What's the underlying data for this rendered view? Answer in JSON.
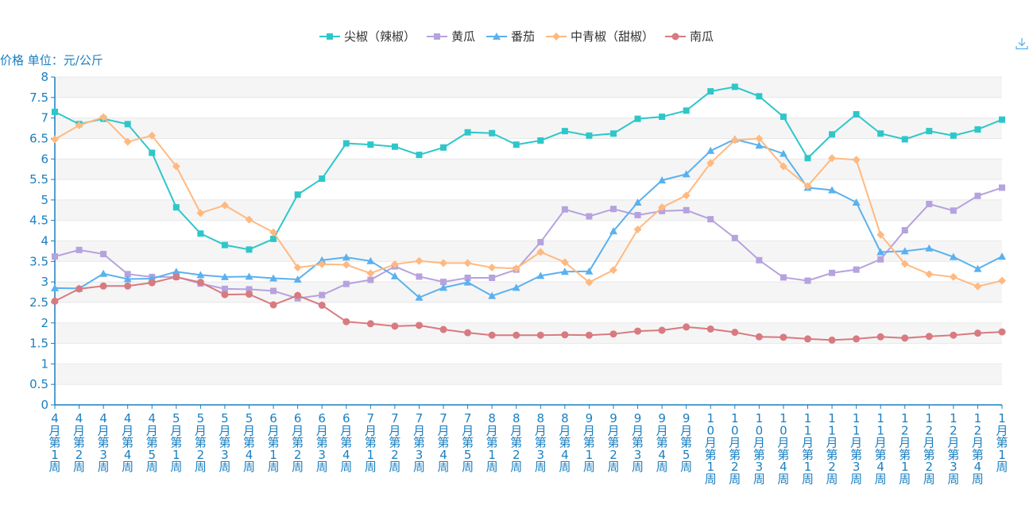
{
  "chart_data": {
    "type": "line",
    "ylabel": "价格 单位：元/公斤",
    "ylim": [
      0,
      8
    ],
    "yticks": [
      "0",
      "0.5",
      "1",
      "1.5",
      "2",
      "2.5",
      "3",
      "3.5",
      "4",
      "4.5",
      "5",
      "5.5",
      "6",
      "6.5",
      "7",
      "7.5",
      "8"
    ],
    "grid": "horizontal bands",
    "legend_position": "top-center",
    "categories": [
      "4月第1周",
      "4月第2周",
      "4月第3周",
      "4月第4周",
      "4月第5周",
      "5月第1周",
      "5月第2周",
      "5月第3周",
      "5月第4周",
      "6月第1周",
      "6月第2周",
      "6月第3周",
      "6月第4周",
      "7月第1周",
      "7月第2周",
      "7月第3周",
      "7月第4周",
      "7月第5周",
      "8月第1周",
      "8月第2周",
      "8月第3周",
      "8月第4周",
      "9月第1周",
      "9月第2周",
      "9月第3周",
      "9月第4周",
      "9月第5周",
      "10月第1周",
      "10月第2周",
      "10月第3周",
      "10月第4周",
      "11月第1周",
      "11月第2周",
      "11月第3周",
      "11月第4周",
      "12月第1周",
      "12月第2周",
      "12月第3周",
      "12月第4周",
      "1月第1周"
    ],
    "series": [
      {
        "name": "尖椒（辣椒）",
        "color": "#2ec7c9",
        "marker": "square",
        "values": [
          7.15,
          6.85,
          6.98,
          6.85,
          6.15,
          4.82,
          4.18,
          3.9,
          3.79,
          4.05,
          5.13,
          5.52,
          6.38,
          6.35,
          6.3,
          6.1,
          6.28,
          6.65,
          6.63,
          6.35,
          6.45,
          6.68,
          6.57,
          6.62,
          6.98,
          7.03,
          7.18,
          7.65,
          7.76,
          7.53,
          7.03,
          6.02,
          6.6,
          7.09,
          6.62,
          6.48,
          6.68,
          6.57,
          6.72,
          6.96
        ]
      },
      {
        "name": "黄瓜",
        "color": "#b6a2de",
        "marker": "square",
        "values": [
          3.62,
          3.78,
          3.68,
          3.19,
          3.12,
          3.12,
          2.96,
          2.83,
          2.82,
          2.78,
          2.6,
          2.68,
          2.95,
          3.05,
          3.38,
          3.13,
          3.0,
          3.1,
          3.1,
          3.3,
          3.97,
          4.77,
          4.6,
          4.78,
          4.63,
          4.73,
          4.75,
          4.53,
          4.07,
          3.53,
          3.11,
          3.03,
          3.22,
          3.3,
          3.55,
          4.26,
          4.9,
          4.74,
          5.1,
          5.3
        ]
      },
      {
        "name": "番茄",
        "color": "#5ab1ef",
        "marker": "triangle",
        "values": [
          2.85,
          2.84,
          3.2,
          3.07,
          3.08,
          3.25,
          3.17,
          3.12,
          3.13,
          3.09,
          3.06,
          3.53,
          3.6,
          3.51,
          3.14,
          2.62,
          2.86,
          2.99,
          2.66,
          2.86,
          3.15,
          3.25,
          3.26,
          4.24,
          4.94,
          5.48,
          5.63,
          6.2,
          6.48,
          6.33,
          6.13,
          5.3,
          5.24,
          4.94,
          3.73,
          3.75,
          3.82,
          3.61,
          3.32,
          3.62
        ]
      },
      {
        "name": "中青椒（甜椒）",
        "color": "#ffb980",
        "marker": "diamond",
        "values": [
          6.48,
          6.82,
          7.02,
          6.42,
          6.57,
          5.82,
          4.68,
          4.87,
          4.52,
          4.21,
          3.35,
          3.43,
          3.42,
          3.21,
          3.43,
          3.51,
          3.46,
          3.46,
          3.35,
          3.33,
          3.73,
          3.48,
          2.99,
          3.29,
          4.28,
          4.82,
          5.11,
          5.9,
          6.46,
          6.5,
          5.82,
          5.34,
          6.02,
          5.98,
          4.15,
          3.44,
          3.19,
          3.12,
          2.89,
          3.03
        ]
      },
      {
        "name": "南瓜",
        "color": "#d87a80",
        "marker": "circle",
        "values": [
          2.53,
          2.83,
          2.9,
          2.9,
          2.98,
          3.12,
          2.99,
          2.69,
          2.7,
          2.44,
          2.67,
          2.43,
          2.03,
          1.98,
          1.92,
          1.94,
          1.84,
          1.76,
          1.7,
          1.7,
          1.7,
          1.71,
          1.7,
          1.73,
          1.8,
          1.82,
          1.9,
          1.85,
          1.77,
          1.66,
          1.65,
          1.61,
          1.58,
          1.61,
          1.66,
          1.63,
          1.67,
          1.7,
          1.75,
          1.78
        ]
      }
    ]
  }
}
